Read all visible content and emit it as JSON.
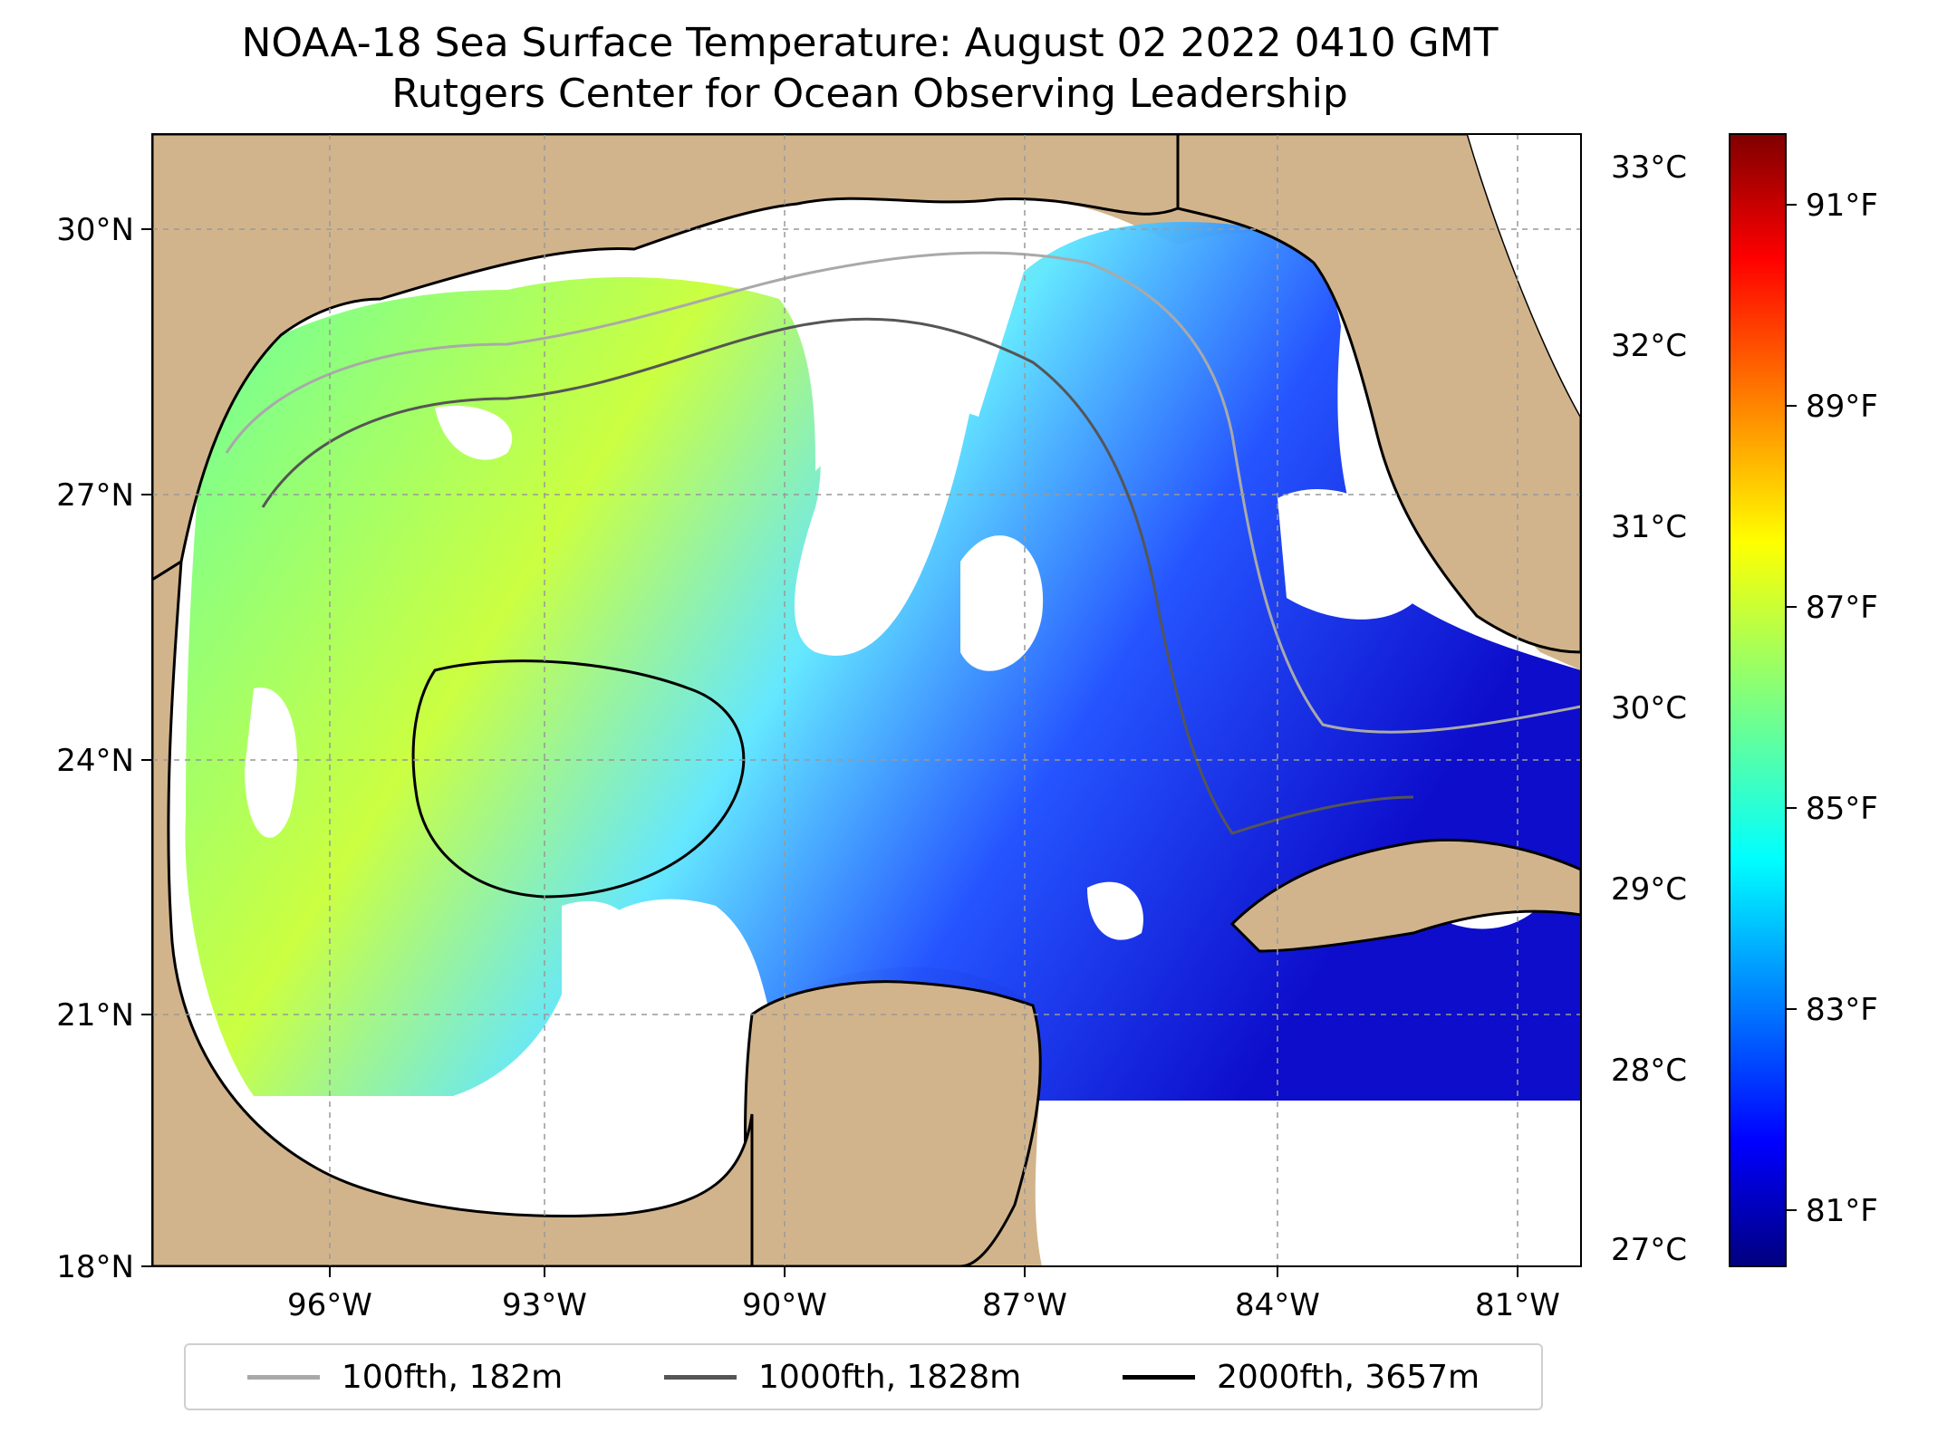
{
  "title": {
    "line1": "NOAA-18 Sea Surface Temperature: August 02 2022 0410 GMT",
    "line2": "Rutgers Center for Ocean Observing Leadership"
  },
  "map": {
    "lat_ticks": [
      "30°N",
      "27°N",
      "24°N",
      "21°N",
      "18°N"
    ],
    "lon_ticks": [
      "96°W",
      "93°W",
      "90°W",
      "87°W",
      "84°W",
      "81°W"
    ],
    "colors": {
      "land": "#d2b48c",
      "no_data": "#ffffff",
      "coastline": "#000000",
      "lakes": "#9ab5e0"
    }
  },
  "colorbar": {
    "celsius_ticks": [
      "33°C",
      "32°C",
      "31°C",
      "30°C",
      "29°C",
      "28°C",
      "27°C"
    ],
    "fahrenheit_ticks": [
      "91°F",
      "89°F",
      "87°F",
      "85°F",
      "83°F",
      "81°F"
    ],
    "colormap": "jet",
    "colors": [
      "#00007f",
      "#0000ff",
      "#007fff",
      "#00ffff",
      "#7fff7f",
      "#ffff00",
      "#ff7f00",
      "#ff0000",
      "#7f0000"
    ]
  },
  "legend": {
    "items": [
      {
        "label": "100fth, 182m",
        "color": "#a9a9a9"
      },
      {
        "label": "1000fth, 1828m",
        "color": "#555555"
      },
      {
        "label": "2000fth, 3657m",
        "color": "#000000"
      }
    ]
  }
}
